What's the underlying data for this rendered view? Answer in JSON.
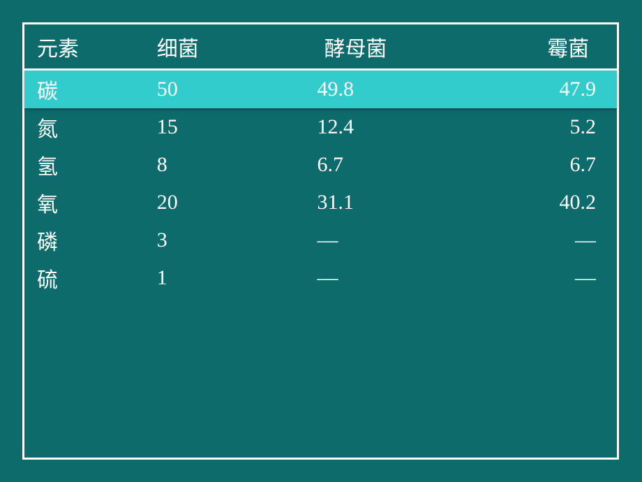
{
  "background_color": "#0d6b6b",
  "text_color": "#ffffff",
  "border_color": "#ffffff",
  "highlight_color": "#33cccc",
  "font_size": 30,
  "table": {
    "headers": {
      "col1": "元素",
      "col2": "细菌",
      "col3": "酵母菌",
      "col4": "霉菌"
    },
    "rows": [
      {
        "element": "碳",
        "bacteria": "50",
        "yeast": "49.8",
        "mold": "47.9",
        "highlighted": true
      },
      {
        "element": "氮",
        "bacteria": "15",
        "yeast": "12.4",
        "mold": "5.2",
        "highlighted": false
      },
      {
        "element": "氢",
        "bacteria": "8",
        "yeast": " 6.7",
        "mold": "6.7",
        "highlighted": false
      },
      {
        "element": "氧",
        "bacteria": "20",
        "yeast": "31.1",
        "mold": "40.2",
        "highlighted": false
      },
      {
        "element": "磷",
        "bacteria": "3",
        "yeast": " —",
        "mold": "—",
        "highlighted": false
      },
      {
        "element": "硫",
        "bacteria": "1",
        "yeast": " —",
        "mold": "—",
        "highlighted": false
      }
    ]
  }
}
